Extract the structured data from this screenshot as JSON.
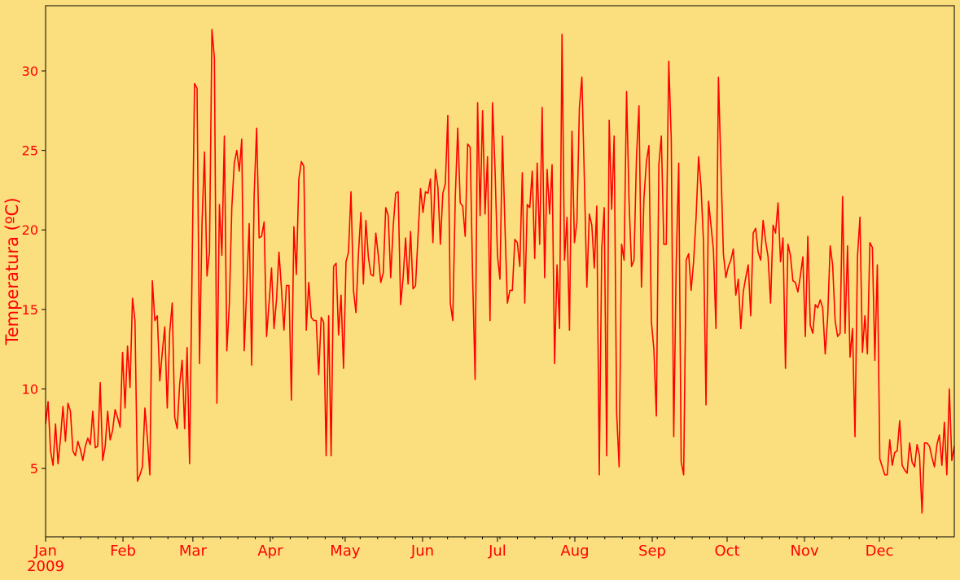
{
  "chart_data": {
    "type": "line",
    "title": "",
    "xlabel": "",
    "ylabel": "Temperatura (ºC)",
    "year_label": "2009",
    "x_start": "2009-01-01",
    "x_end": "2009-12-31",
    "ylim": [
      0.7,
      34.1
    ],
    "yticks": [
      5,
      10,
      15,
      20,
      25,
      30
    ],
    "xtick_labels": [
      "Jan",
      "Feb",
      "Mar",
      "Apr",
      "May",
      "Jun",
      "Jul",
      "Aug",
      "Sep",
      "Oct",
      "Nov",
      "Dec"
    ],
    "grid": false,
    "colors": {
      "background": "#FBDE7E",
      "line": "#FF0000",
      "text": "#FF0000",
      "axes": "#000000"
    },
    "series": [
      {
        "values": [
          7.8,
          9.2,
          6.1,
          5.2,
          7.8,
          5.3,
          6.9,
          8.9,
          6.7,
          9.1,
          8.6,
          6.1,
          5.8,
          6.7,
          6.2,
          5.5,
          6.4,
          6.9,
          6.5,
          8.6,
          6.3,
          6.4,
          10.4,
          5.5,
          6.4,
          8.6,
          6.8,
          7.4,
          8.7,
          8.2,
          7.6,
          12.3,
          8.8,
          12.7,
          10.1,
          15.7,
          14.3,
          4.2,
          4.6,
          5.1,
          8.8,
          6.9,
          4.6,
          16.8,
          14.3,
          14.6,
          10.5,
          12.3,
          13.9,
          8.8,
          13.6,
          15.4,
          8.2,
          7.5,
          10.3,
          11.8,
          7.5,
          12.6,
          5.3,
          17.6,
          29.2,
          28.9,
          11.6,
          20.4,
          24.9,
          17.1,
          18.6,
          32.6,
          30.8,
          9.1,
          21.6,
          18.4,
          25.9,
          12.4,
          15.3,
          21.4,
          24.2,
          25.0,
          23.7,
          25.7,
          12.4,
          16.3,
          20.4,
          11.5,
          22.2,
          26.4,
          19.5,
          19.6,
          20.5,
          13.3,
          15.4,
          17.6,
          13.8,
          15.6,
          18.6,
          16.3,
          13.7,
          16.5,
          16.5,
          9.3,
          20.2,
          17.2,
          23.2,
          24.3,
          24.0,
          13.7,
          16.7,
          14.5,
          14.3,
          14.3,
          10.9,
          14.5,
          14.2,
          5.8,
          14.6,
          5.8,
          17.7,
          17.9,
          13.4,
          15.9,
          11.3,
          18.0,
          18.6,
          22.4,
          16.2,
          14.8,
          18.5,
          21.1,
          16.6,
          20.6,
          18.3,
          17.2,
          17.1,
          19.8,
          18.4,
          16.7,
          17.3,
          21.4,
          20.9,
          17.0,
          20.2,
          22.3,
          22.4,
          15.3,
          17.0,
          19.5,
          16.6,
          19.9,
          16.3,
          16.5,
          19.6,
          22.6,
          21.1,
          22.4,
          22.3,
          23.2,
          19.2,
          23.8,
          22.7,
          19.1,
          22.3,
          22.9,
          27.2,
          15.4,
          14.3,
          22.0,
          26.4,
          21.7,
          21.5,
          19.6,
          25.4,
          25.2,
          17.0,
          10.6,
          28.0,
          20.9,
          27.5,
          21.0,
          24.6,
          14.3,
          28.0,
          23.9,
          18.4,
          16.9,
          25.9,
          20.3,
          15.4,
          16.2,
          16.2,
          19.4,
          19.2,
          17.7,
          23.6,
          15.4,
          21.6,
          21.4,
          23.7,
          18.2,
          24.2,
          19.1,
          27.7,
          17.0,
          23.8,
          21.0,
          24.1,
          11.6,
          17.8,
          13.8,
          32.3,
          18.1,
          20.8,
          13.7,
          26.2,
          19.2,
          20.5,
          27.7,
          29.6,
          23.2,
          16.4,
          21.0,
          20.3,
          17.6,
          21.5,
          4.6,
          18.8,
          21.4,
          5.8,
          26.9,
          21.3,
          25.9,
          8.5,
          5.1,
          19.1,
          18.1,
          28.7,
          21.8,
          17.7,
          18.1,
          24.6,
          27.8,
          16.4,
          22.0,
          24.3,
          25.3,
          14.2,
          12.5,
          8.3,
          24.1,
          25.9,
          19.1,
          19.1,
          30.6,
          25.7,
          7.0,
          17.9,
          24.2,
          5.4,
          4.6,
          18.1,
          18.5,
          16.2,
          18.0,
          20.8,
          24.6,
          22.7,
          19.2,
          9.0,
          21.8,
          20.3,
          18.7,
          13.8,
          29.6,
          24.0,
          18.5,
          17.0,
          17.7,
          18.1,
          18.8,
          15.9,
          16.9,
          13.8,
          16.1,
          17.0,
          17.8,
          14.6,
          19.8,
          20.1,
          18.6,
          18.1,
          20.6,
          19.3,
          18.3,
          15.4,
          20.3,
          19.8,
          21.7,
          18.0,
          19.5,
          11.3,
          19.1,
          18.4,
          16.8,
          16.7,
          16.1,
          17.1,
          18.3,
          13.3,
          19.6,
          14.0,
          13.5,
          15.3,
          15.1,
          15.6,
          15.1,
          12.2,
          14.5,
          19.0,
          17.8,
          14.3,
          13.3,
          13.5,
          22.1,
          13.5,
          19.0,
          12.0,
          13.8,
          7.0,
          18.3,
          20.8,
          12.3,
          14.6,
          12.2,
          19.2,
          18.9,
          11.8,
          17.8,
          5.6,
          5.1,
          4.6,
          4.6,
          6.8,
          5.2,
          6.0,
          6.1,
          8.0,
          5.2,
          4.9,
          4.7,
          6.6,
          5.4,
          5.1,
          6.5,
          5.8,
          2.2,
          6.6,
          6.6,
          6.4,
          5.7,
          5.1,
          6.5,
          7.1,
          5.2,
          7.9,
          4.6,
          10.0,
          5.5,
          6.4
        ]
      }
    ]
  }
}
